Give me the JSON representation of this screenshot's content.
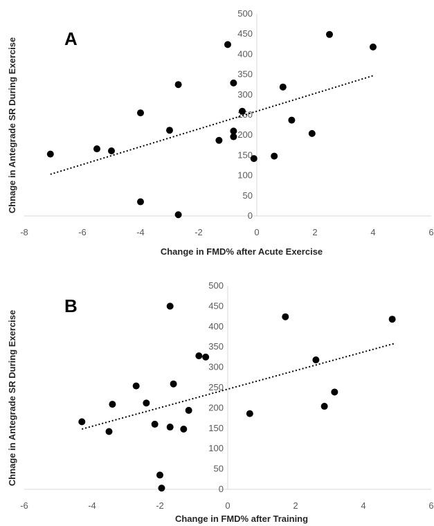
{
  "chart_data": [
    {
      "type": "scatter",
      "panel_label": "A",
      "title": "",
      "xlabel": "Change in FMD% after Acute Exercise",
      "ylabel": "Chnage in Antegrade SR During Exercise",
      "xlim": [
        -8,
        6
      ],
      "ylim": [
        0,
        500
      ],
      "x_ticks": [
        -8,
        -6,
        -4,
        -2,
        0,
        2,
        4,
        6
      ],
      "y_ticks": [
        0,
        50,
        100,
        150,
        200,
        250,
        300,
        350,
        400,
        450,
        500
      ],
      "grid": false,
      "trendline": {
        "style": "dotted",
        "x": [
          -7.1,
          4.0
        ],
        "y": [
          103,
          347
        ]
      },
      "points": [
        {
          "x": -7.1,
          "y": 153
        },
        {
          "x": -5.5,
          "y": 166
        },
        {
          "x": -5.0,
          "y": 161
        },
        {
          "x": -4.0,
          "y": 255
        },
        {
          "x": -4.0,
          "y": 35
        },
        {
          "x": -3.0,
          "y": 212
        },
        {
          "x": -2.7,
          "y": 325
        },
        {
          "x": -2.7,
          "y": 3
        },
        {
          "x": -1.3,
          "y": 187
        },
        {
          "x": -1.0,
          "y": 424
        },
        {
          "x": -0.8,
          "y": 329
        },
        {
          "x": -0.8,
          "y": 210
        },
        {
          "x": -0.8,
          "y": 196
        },
        {
          "x": -0.5,
          "y": 259
        },
        {
          "x": -0.1,
          "y": 142
        },
        {
          "x": 0.6,
          "y": 148
        },
        {
          "x": 0.9,
          "y": 319
        },
        {
          "x": 1.2,
          "y": 237
        },
        {
          "x": 1.9,
          "y": 204
        },
        {
          "x": 2.5,
          "y": 449
        },
        {
          "x": 4.0,
          "y": 418
        }
      ]
    },
    {
      "type": "scatter",
      "panel_label": "B",
      "title": "",
      "xlabel": "Change in FMD% after Training",
      "ylabel": "Chnage in Antegrade SR During Exercise",
      "xlim": [
        -6,
        6
      ],
      "ylim": [
        0,
        500
      ],
      "x_ticks": [
        -6,
        -4,
        -2,
        0,
        2,
        4,
        6
      ],
      "y_ticks": [
        0,
        50,
        100,
        150,
        200,
        250,
        300,
        350,
        400,
        450,
        500
      ],
      "grid": false,
      "trendline": {
        "style": "dotted",
        "x": [
          -4.3,
          4.9
        ],
        "y": [
          148,
          358
        ]
      },
      "points": [
        {
          "x": -4.3,
          "y": 166
        },
        {
          "x": -3.5,
          "y": 142
        },
        {
          "x": -3.4,
          "y": 209
        },
        {
          "x": -2.7,
          "y": 254
        },
        {
          "x": -2.4,
          "y": 212
        },
        {
          "x": -2.15,
          "y": 160
        },
        {
          "x": -2.0,
          "y": 35
        },
        {
          "x": -1.95,
          "y": 3
        },
        {
          "x": -1.7,
          "y": 450
        },
        {
          "x": -1.7,
          "y": 153
        },
        {
          "x": -1.6,
          "y": 259
        },
        {
          "x": -1.3,
          "y": 148
        },
        {
          "x": -1.15,
          "y": 194
        },
        {
          "x": -0.85,
          "y": 328
        },
        {
          "x": -0.65,
          "y": 325
        },
        {
          "x": 0.65,
          "y": 186
        },
        {
          "x": 1.7,
          "y": 424
        },
        {
          "x": 2.6,
          "y": 318
        },
        {
          "x": 2.85,
          "y": 204
        },
        {
          "x": 3.15,
          "y": 239
        },
        {
          "x": 4.85,
          "y": 418
        }
      ]
    }
  ]
}
